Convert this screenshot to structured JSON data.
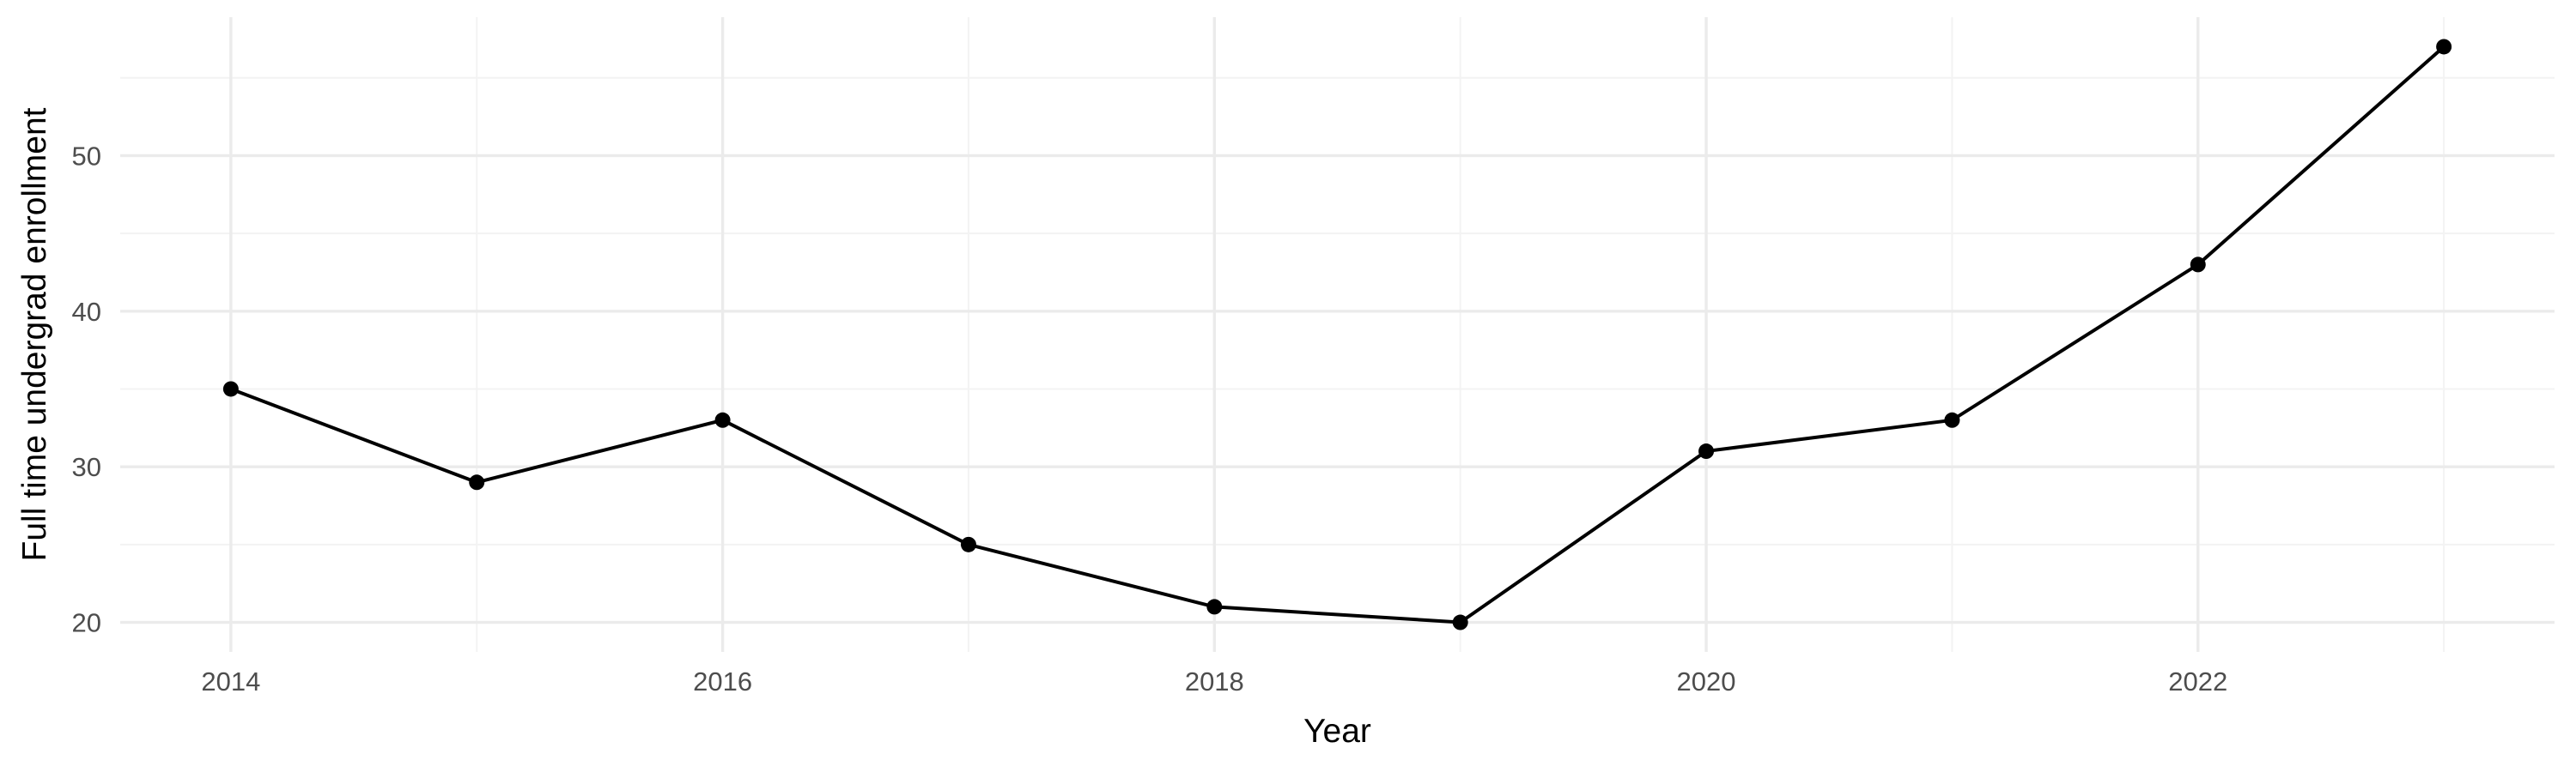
{
  "chart_data": {
    "type": "line",
    "title": "",
    "xlabel": "Year",
    "ylabel": "Full time undergrad enrollment",
    "x": [
      2014,
      2015,
      2016,
      2017,
      2018,
      2019,
      2020,
      2021,
      2022,
      2023
    ],
    "series": [
      {
        "values": [
          35,
          29,
          33,
          25,
          21,
          20,
          31,
          33,
          43,
          57
        ]
      }
    ],
    "xticks": [
      2014,
      2016,
      2018,
      2020,
      2022
    ],
    "yticks": [
      20,
      30,
      40,
      50
    ],
    "xlim": [
      2013.55,
      2023.45
    ],
    "ylim": [
      18.1,
      58.9
    ],
    "grid": true,
    "legend": "none",
    "colors": {
      "line": "#000000",
      "point": "#000000",
      "grid_major": "#ebebeb",
      "grid_minor": "#f3f3f3",
      "tick_text": "#4d4d4d",
      "title_text": "#000000"
    }
  }
}
